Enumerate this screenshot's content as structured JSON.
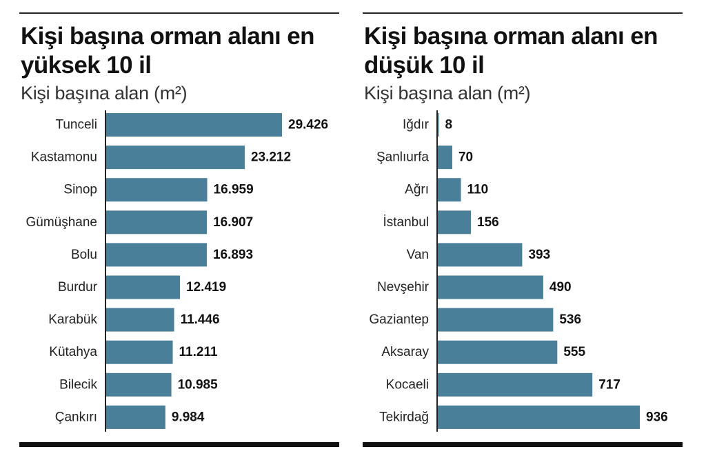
{
  "colors": {
    "bar": "#4a7f9a",
    "text": "#111111",
    "rule": "#222222"
  },
  "chart_data": [
    {
      "type": "bar",
      "orientation": "horizontal",
      "title": "Kişi başına orman alanı en yüksek 10 il",
      "subtitle": "Kişi başına alan (m²)",
      "categories": [
        "Tunceli",
        "Kastamonu",
        "Sinop",
        "Gümüşhane",
        "Bolu",
        "Burdur",
        "Karabük",
        "Kütahya",
        "Bilecik",
        "Çankırı"
      ],
      "values": [
        29426,
        23212,
        16959,
        16907,
        16893,
        12419,
        11446,
        11211,
        10985,
        9984
      ],
      "value_labels": [
        "29.426",
        "23.212",
        "16.959",
        "16.907",
        "16.893",
        "12.419",
        "11.446",
        "11.211",
        "10.985",
        "9.984"
      ],
      "xlim": [
        0,
        29426
      ],
      "grid": false,
      "legend": false
    },
    {
      "type": "bar",
      "orientation": "horizontal",
      "title": "Kişi başına orman alanı en düşük 10 il",
      "subtitle": "Kişi başına alan (m²)",
      "categories": [
        "Iğdır",
        "Şanlıurfa",
        "Ağrı",
        "İstanbul",
        "Van",
        "Nevşehir",
        "Gaziantep",
        "Aksaray",
        "Kocaeli",
        "Tekirdağ"
      ],
      "values": [
        8,
        70,
        110,
        156,
        393,
        490,
        536,
        555,
        717,
        936
      ],
      "value_labels": [
        "8",
        "70",
        "110",
        "156",
        "393",
        "490",
        "536",
        "555",
        "717",
        "936"
      ],
      "xlim": [
        0,
        936
      ],
      "grid": false,
      "legend": false
    }
  ]
}
